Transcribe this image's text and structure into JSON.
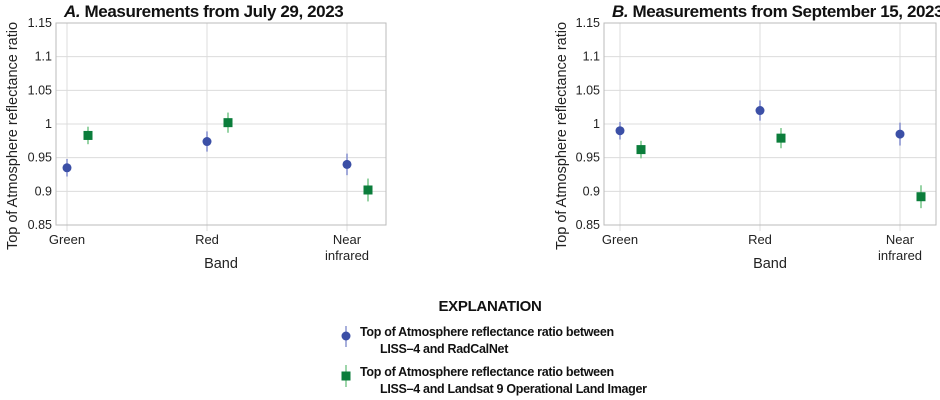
{
  "colors": {
    "radcalnet": "#3b4fa6",
    "landsat": "#0b7d3b",
    "radcalnet_err": "#8b95d0",
    "landsat_err": "#7fc98f",
    "grid": "#dcdcdc"
  },
  "legend": {
    "title": "EXPLANATION",
    "items": [
      {
        "line1": "Top of Atmosphere reflectance ratio between",
        "line2": "LISS–4 and RadCalNet",
        "marker": "circle"
      },
      {
        "line1": "Top of Atmosphere reflectance ratio between",
        "line2": "LISS–4 and Landsat 9 Operational Land Imager",
        "marker": "square"
      }
    ]
  },
  "chart_data": [
    {
      "type": "scatter",
      "title_prefix": "A.",
      "title": "Measurements from July 29, 2023",
      "xlabel": "Band",
      "ylabel": "Top of Atmosphere reflectance ratio",
      "categories": [
        "Green",
        "Red",
        "Near|infrared"
      ],
      "ylim": [
        0.85,
        1.15
      ],
      "yticks": [
        "0.85",
        "0.9",
        "0.95",
        "1",
        "1.05",
        "1.1",
        "1.15"
      ],
      "grid": true,
      "series": [
        {
          "name": "LISS–4 and RadCalNet",
          "values": [
            0.935,
            0.974,
            0.94
          ],
          "errors": [
            0.013,
            0.015,
            0.016
          ]
        },
        {
          "name": "LISS–4 and Landsat 9 Operational Land Imager",
          "values": [
            0.983,
            1.002,
            0.902
          ],
          "errors": [
            0.013,
            0.015,
            0.017
          ]
        }
      ]
    },
    {
      "type": "scatter",
      "title_prefix": "B.",
      "title": "Measurements from September 15, 2023",
      "xlabel": "Band",
      "ylabel": "Top of Atmosphere reflectance ratio",
      "categories": [
        "Green",
        "Red",
        "Near|infrared"
      ],
      "ylim": [
        0.85,
        1.15
      ],
      "yticks": [
        "0.85",
        "0.9",
        "0.95",
        "1",
        "1.05",
        "1.1",
        "1.15"
      ],
      "grid": true,
      "series": [
        {
          "name": "LISS–4 and RadCalNet",
          "values": [
            0.99,
            1.02,
            0.985
          ],
          "errors": [
            0.013,
            0.015,
            0.017
          ]
        },
        {
          "name": "LISS–4 and Landsat 9 Operational Land Imager",
          "values": [
            0.962,
            0.979,
            0.892
          ],
          "errors": [
            0.013,
            0.015,
            0.017
          ]
        }
      ]
    }
  ]
}
